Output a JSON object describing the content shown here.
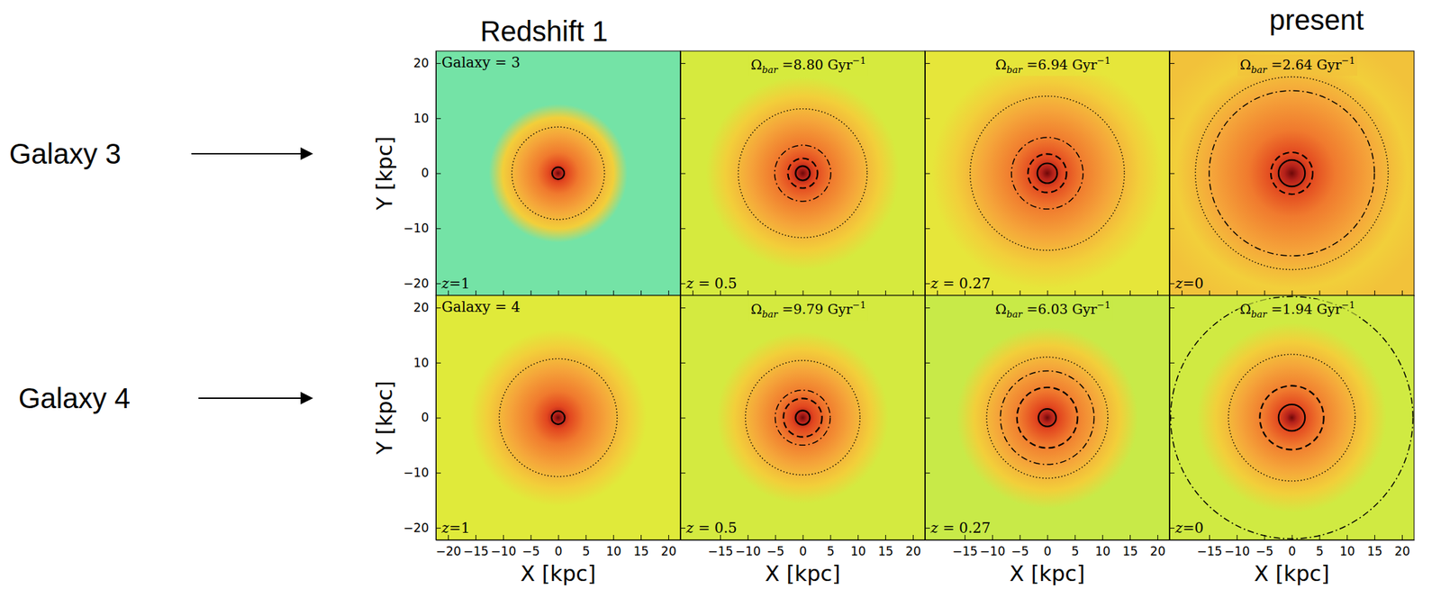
{
  "chart_data": [
    {
      "type": "density_map",
      "title": "Galaxy = 3",
      "redshift": {
        "value": 1,
        "label": "z=1"
      },
      "xlim": [
        -22.2,
        22.2
      ],
      "ylim": [
        -22.2,
        22.2
      ],
      "xticks": [
        -20,
        -15,
        -10,
        -5,
        0,
        5,
        10,
        15,
        20
      ],
      "yticks": [
        {
          "value": -20,
          "label": "−20"
        },
        {
          "value": -10,
          "label": "−10"
        },
        0,
        10,
        20
      ],
      "tick_labels": "y",
      "ylabel": "Y [kpc]",
      "color": "#74e3a6",
      "circles": [
        {
          "radius": 8.4,
          "line_style": "dotted"
        },
        {
          "radius": 1.1,
          "line_style": "solid"
        }
      ]
    },
    {
      "type": "density_map",
      "annotation": {
        "symbol": "Ω",
        "subscript": "bar",
        "relation": "=",
        "value": 8.8,
        "value_label": "8.80",
        "unit": "Gyr",
        "superscript": "−1"
      },
      "redshift": {
        "value": 0.5,
        "label": "z = 0.5"
      },
      "xlim": [
        -22.2,
        22.2
      ],
      "ylim": [
        -22.2,
        22.2
      ],
      "xticks": [
        -20,
        -15,
        -10,
        -5,
        0,
        5,
        10,
        15,
        20
      ],
      "yticks": [
        -20,
        -10,
        0,
        10,
        20
      ],
      "tick_labels": false,
      "color": "#d6ea3e",
      "circles": [
        {
          "radius": 11.7,
          "line_style": "dotted"
        },
        {
          "radius": 5.1,
          "line_style": "dashdot"
        },
        {
          "radius": 2.7,
          "line_style": "dashed"
        },
        {
          "radius": 1.3,
          "line_style": "solid"
        }
      ]
    },
    {
      "type": "density_map",
      "annotation": {
        "symbol": "Ω",
        "subscript": "bar",
        "relation": "=",
        "value": 6.94,
        "value_label": "6.94",
        "unit": "Gyr",
        "superscript": "−1"
      },
      "redshift": {
        "value": 0.27,
        "label": "z = 0.27"
      },
      "xlim": [
        -22.2,
        22.2
      ],
      "ylim": [
        -22.2,
        22.2
      ],
      "xticks": [
        -20,
        -15,
        -10,
        -5,
        0,
        5,
        10,
        15,
        20
      ],
      "yticks": [
        -20,
        -10,
        0,
        10,
        20
      ],
      "tick_labels": false,
      "color": "#e6e63a",
      "circles": [
        {
          "radius": 14.0,
          "line_style": "dotted"
        },
        {
          "radius": 6.5,
          "line_style": "dashdot"
        },
        {
          "radius": 3.5,
          "line_style": "dashed"
        },
        {
          "radius": 1.8,
          "line_style": "solid"
        }
      ]
    },
    {
      "type": "density_map",
      "annotation": {
        "symbol": "Ω",
        "subscript": "bar",
        "relation": "=",
        "value": 2.64,
        "value_label": "2.64",
        "unit": "Gyr",
        "superscript": "−1"
      },
      "redshift": {
        "value": 0,
        "label": "z=0"
      },
      "xlim": [
        -22.2,
        22.2
      ],
      "ylim": [
        -22.2,
        22.2
      ],
      "xticks": [
        -20,
        -15,
        -10,
        -5,
        0,
        5,
        10,
        15,
        20
      ],
      "yticks": [
        -20,
        -10,
        0,
        10,
        20
      ],
      "tick_labels": false,
      "color": "#f2c23a",
      "circles": [
        {
          "radius": 17.5,
          "line_style": "dotted"
        },
        {
          "radius": 15.0,
          "line_style": "dashdot"
        },
        {
          "radius": 3.8,
          "line_style": "dashed"
        },
        {
          "radius": 2.4,
          "line_style": "solid"
        }
      ]
    },
    {
      "type": "density_map",
      "title": "Galaxy = 4",
      "redshift": {
        "value": 1,
        "label": "z=1"
      },
      "xlim": [
        -22.2,
        22.2
      ],
      "ylim": [
        -22.2,
        22.2
      ],
      "xticks": [
        {
          "value": -20,
          "label": "−20"
        },
        {
          "value": -15,
          "label": "−15"
        },
        {
          "value": -10,
          "label": "−10"
        },
        {
          "value": -5,
          "label": "−5"
        },
        0,
        5,
        10,
        15,
        20
      ],
      "yticks": [
        {
          "value": -20,
          "label": "−20"
        },
        {
          "value": -10,
          "label": "−10"
        },
        0,
        10,
        20
      ],
      "tick_labels": true,
      "xlabel": "X [kpc]",
      "ylabel": "Y [kpc]",
      "color": "#e0ea3a",
      "circles": [
        {
          "radius": 10.7,
          "line_style": "dotted"
        },
        {
          "radius": 1.2,
          "line_style": "solid"
        }
      ]
    },
    {
      "type": "density_map",
      "annotation": {
        "symbol": "Ω",
        "subscript": "bar",
        "relation": "=",
        "value": 9.79,
        "value_label": "9.79",
        "unit": "Gyr",
        "superscript": "−1"
      },
      "redshift": {
        "value": 0.5,
        "label": "z = 0.5"
      },
      "xlim": [
        -22.2,
        22.2
      ],
      "ylim": [
        -22.2,
        22.2
      ],
      "xticks": [
        {
          "value": -15,
          "label": "−15"
        },
        {
          "value": -10,
          "label": "−10"
        },
        {
          "value": -5,
          "label": "−5"
        },
        0,
        5,
        10,
        15,
        20
      ],
      "yticks": [
        -20,
        -10,
        0,
        10,
        20
      ],
      "tick_labels": "x",
      "xlabel": "X [kpc]",
      "color": "#d4ea40",
      "circles": [
        {
          "radius": 10.4,
          "line_style": "dotted"
        },
        {
          "radius": 5.0,
          "line_style": "dashdot"
        },
        {
          "radius": 3.5,
          "line_style": "dashed"
        },
        {
          "radius": 1.3,
          "line_style": "solid"
        }
      ]
    },
    {
      "type": "density_map",
      "annotation": {
        "symbol": "Ω",
        "subscript": "bar",
        "relation": "=",
        "value": 6.03,
        "value_label": "6.03",
        "unit": "Gyr",
        "superscript": "−1"
      },
      "redshift": {
        "value": 0.27,
        "label": "z = 0.27"
      },
      "xlim": [
        -22.2,
        22.2
      ],
      "ylim": [
        -22.2,
        22.2
      ],
      "xticks": [
        {
          "value": -15,
          "label": "−15"
        },
        {
          "value": -10,
          "label": "−10"
        },
        {
          "value": -5,
          "label": "−5"
        },
        0,
        5,
        10,
        15,
        20
      ],
      "yticks": [
        -20,
        -10,
        0,
        10,
        20
      ],
      "tick_labels": "x",
      "xlabel": "X [kpc]",
      "color": "#c8ea48",
      "circles": [
        {
          "radius": 11.0,
          "line_style": "dotted"
        },
        {
          "radius": 8.5,
          "line_style": "dashdot"
        },
        {
          "radius": 5.5,
          "line_style": "dashed"
        },
        {
          "radius": 1.6,
          "line_style": "solid"
        }
      ]
    },
    {
      "type": "density_map",
      "annotation": {
        "symbol": "Ω",
        "subscript": "bar",
        "relation": "=",
        "value": 1.94,
        "value_label": "1.94",
        "unit": "Gyr",
        "superscript": "−1"
      },
      "redshift": {
        "value": 0,
        "label": "z=0"
      },
      "xlim": [
        -22.2,
        22.2
      ],
      "ylim": [
        -22.2,
        22.2
      ],
      "xticks": [
        {
          "value": -15,
          "label": "−15"
        },
        {
          "value": -10,
          "label": "−10"
        },
        {
          "value": -5,
          "label": "−5"
        },
        0,
        5,
        10,
        15,
        20
      ],
      "yticks": [
        -20,
        -10,
        0,
        10,
        20
      ],
      "tick_labels": "x",
      "xlabel": "X [kpc]",
      "color": "#d0ea42",
      "circles": [
        {
          "radius": 22.0,
          "line_style": "dashdot"
        },
        {
          "radius": 11.5,
          "line_style": "dotted"
        },
        {
          "radius": 5.8,
          "line_style": "dashed"
        },
        {
          "radius": 2.4,
          "line_style": "solid"
        }
      ]
    }
  ],
  "figure_labels": {
    "header": {
      "left": "Redshift 1",
      "right": "present"
    },
    "row_labels": [
      "Galaxy 3",
      "Galaxy 4"
    ]
  }
}
